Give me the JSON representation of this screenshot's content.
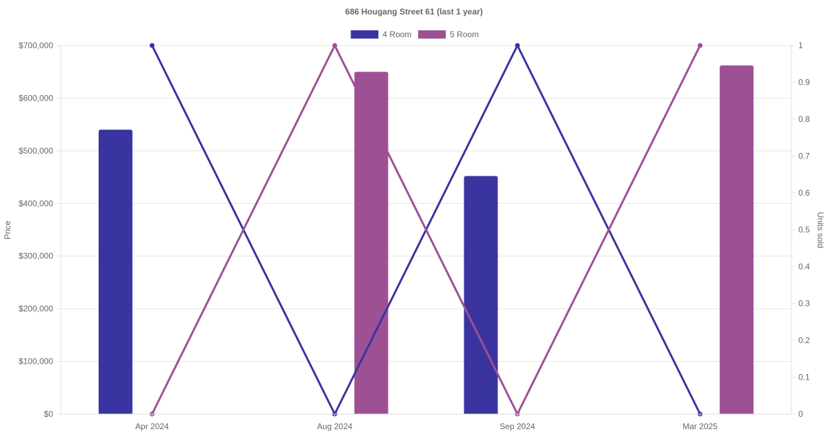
{
  "chart_data": {
    "type": "bar",
    "title": "686 Hougang Street 61 (last 1 year)",
    "categories": [
      "Apr 2024",
      "Aug 2024",
      "Sep 2024",
      "Mar 2025"
    ],
    "series": [
      {
        "name": "4 Room",
        "type": "bar",
        "axis": "left",
        "color": "#3a34a0",
        "values": [
          540000,
          null,
          452000,
          null
        ]
      },
      {
        "name": "5 Room",
        "type": "bar",
        "axis": "left",
        "color": "#9e5094",
        "values": [
          null,
          650000,
          null,
          662000
        ]
      },
      {
        "name": "4 Room",
        "type": "line",
        "axis": "right",
        "color": "#3a34a0",
        "values": [
          1,
          0,
          1,
          0
        ]
      },
      {
        "name": "5 Room",
        "type": "line",
        "axis": "right",
        "color": "#9e5094",
        "values": [
          0,
          1,
          0,
          1
        ]
      }
    ],
    "y_left": {
      "label": "Price",
      "range": [
        0,
        700000
      ],
      "ticks": [
        0,
        100000,
        200000,
        300000,
        400000,
        500000,
        600000,
        700000
      ],
      "tick_labels": [
        "$0",
        "$100,000",
        "$200,000",
        "$300,000",
        "$400,000",
        "$500,000",
        "$600,000",
        "$700,000"
      ]
    },
    "y_right": {
      "label": "Units sold",
      "range": [
        0,
        1
      ],
      "ticks": [
        0,
        0.1,
        0.2,
        0.3,
        0.4,
        0.5,
        0.6,
        0.7,
        0.8,
        0.9,
        1
      ],
      "tick_labels": [
        "0",
        "0.1",
        "0.2",
        "0.3",
        "0.4",
        "0.5",
        "0.6",
        "0.7",
        "0.8",
        "0.9",
        "1"
      ]
    },
    "legend": [
      {
        "label": "4 Room",
        "color": "#3a34a0"
      },
      {
        "label": "5 Room",
        "color": "#9e5094"
      }
    ],
    "legend_position": "top",
    "grid": true
  }
}
